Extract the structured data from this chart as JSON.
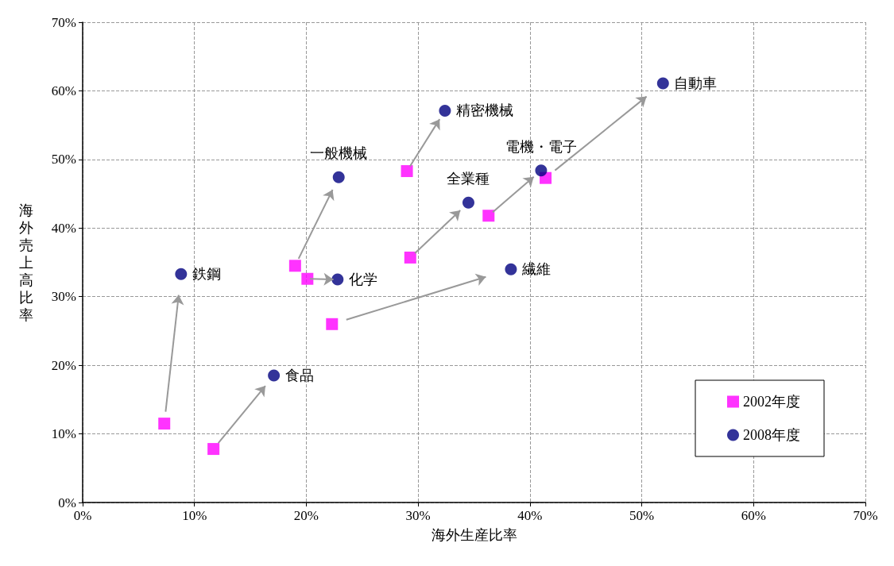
{
  "chart_data": {
    "type": "scatter",
    "xlabel": "海外生産比率",
    "ylabel": "海外売上高比率",
    "xlim": [
      0,
      70
    ],
    "ylim": [
      0,
      70
    ],
    "xticks": [
      {
        "value": 0,
        "label": "0%"
      },
      {
        "value": 10,
        "label": "10%"
      },
      {
        "value": 20,
        "label": "20%"
      },
      {
        "value": 30,
        "label": "30%"
      },
      {
        "value": 40,
        "label": "40%"
      },
      {
        "value": 50,
        "label": "50%"
      },
      {
        "value": 60,
        "label": "60%"
      },
      {
        "value": 70,
        "label": "70%"
      }
    ],
    "yticks": [
      {
        "value": 0,
        "label": "0%"
      },
      {
        "value": 10,
        "label": "10%"
      },
      {
        "value": 20,
        "label": "20%"
      },
      {
        "value": 30,
        "label": "30%"
      },
      {
        "value": 40,
        "label": "40%"
      },
      {
        "value": 50,
        "label": "50%"
      },
      {
        "value": 60,
        "label": "60%"
      },
      {
        "value": 70,
        "label": "70%"
      }
    ],
    "grid": true,
    "legend": "bottom right",
    "series": [
      {
        "name": "2002年度",
        "color": "#ff00ff",
        "marker": "square",
        "x": [
          7.3,
          11.7,
          19.0,
          20.1,
          22.3,
          29.0,
          29.3,
          36.3,
          41.4
        ],
        "values": [
          11.5,
          7.8,
          34.5,
          32.6,
          26.0,
          48.3,
          35.7,
          41.8,
          47.3
        ]
      },
      {
        "name": "2008年度",
        "color": "#000080",
        "marker": "circle",
        "x": [
          8.8,
          17.1,
          22.9,
          22.8,
          38.3,
          32.4,
          34.5,
          41.0,
          51.9
        ],
        "values": [
          33.3,
          18.5,
          47.4,
          32.5,
          34.0,
          57.1,
          43.7,
          48.4,
          61.1
        ]
      }
    ],
    "annotations": [
      {
        "text": "鉄鋼",
        "x": 8.8,
        "y": 33.3
      },
      {
        "text": "食品",
        "x": 17.1,
        "y": 18.5
      },
      {
        "text": "一般機械",
        "x": 22.9,
        "y": 47.4
      },
      {
        "text": "化学",
        "x": 22.8,
        "y": 32.5
      },
      {
        "text": "繊維",
        "x": 38.3,
        "y": 34.0
      },
      {
        "text": "精密機械",
        "x": 32.4,
        "y": 57.1
      },
      {
        "text": "全業種",
        "x": 34.5,
        "y": 43.7
      },
      {
        "text": "電機・電子",
        "x": 41.0,
        "y": 48.4
      },
      {
        "text": "自動車",
        "x": 51.9,
        "y": 61.1
      }
    ]
  }
}
